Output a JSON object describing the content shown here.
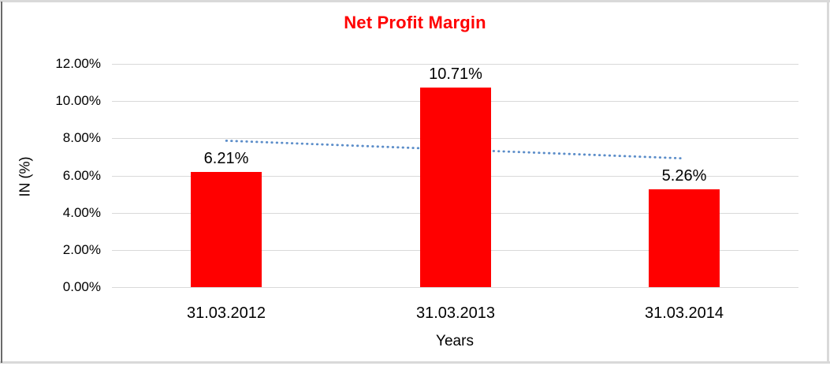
{
  "frame": {
    "background": "#ffffff",
    "border_light": "#d9d9d9",
    "border_dark": "#6a6a6a"
  },
  "chart_data": {
    "type": "bar",
    "title": "Net Profit Margin",
    "title_color": "#ff0000",
    "xlabel": "Years",
    "ylabel": "IN (%)",
    "categories": [
      "31.03.2012",
      "31.03.2013",
      "31.03.2014"
    ],
    "series": [
      {
        "name": "Net Profit Margin",
        "color": "#ff0000",
        "values": [
          6.21,
          10.71,
          5.26
        ],
        "data_labels": [
          "6.21%",
          "10.71%",
          "5.26%"
        ]
      }
    ],
    "ylim": [
      0,
      12
    ],
    "yticks": [
      {
        "label": "0.00%",
        "value": 0
      },
      {
        "label": "2.00%",
        "value": 2
      },
      {
        "label": "4.00%",
        "value": 4
      },
      {
        "label": "6.00%",
        "value": 6
      },
      {
        "label": "8.00%",
        "value": 8
      },
      {
        "label": "10.00%",
        "value": 10
      },
      {
        "label": "12.00%",
        "value": 12
      }
    ],
    "grid": "horizontal",
    "gridline_color": "#d9d9d9",
    "legend": "none",
    "trendline": {
      "type": "linear",
      "style": "dotted",
      "color": "#5b8dc9",
      "start_value": 7.87,
      "end_value": 6.92
    }
  }
}
